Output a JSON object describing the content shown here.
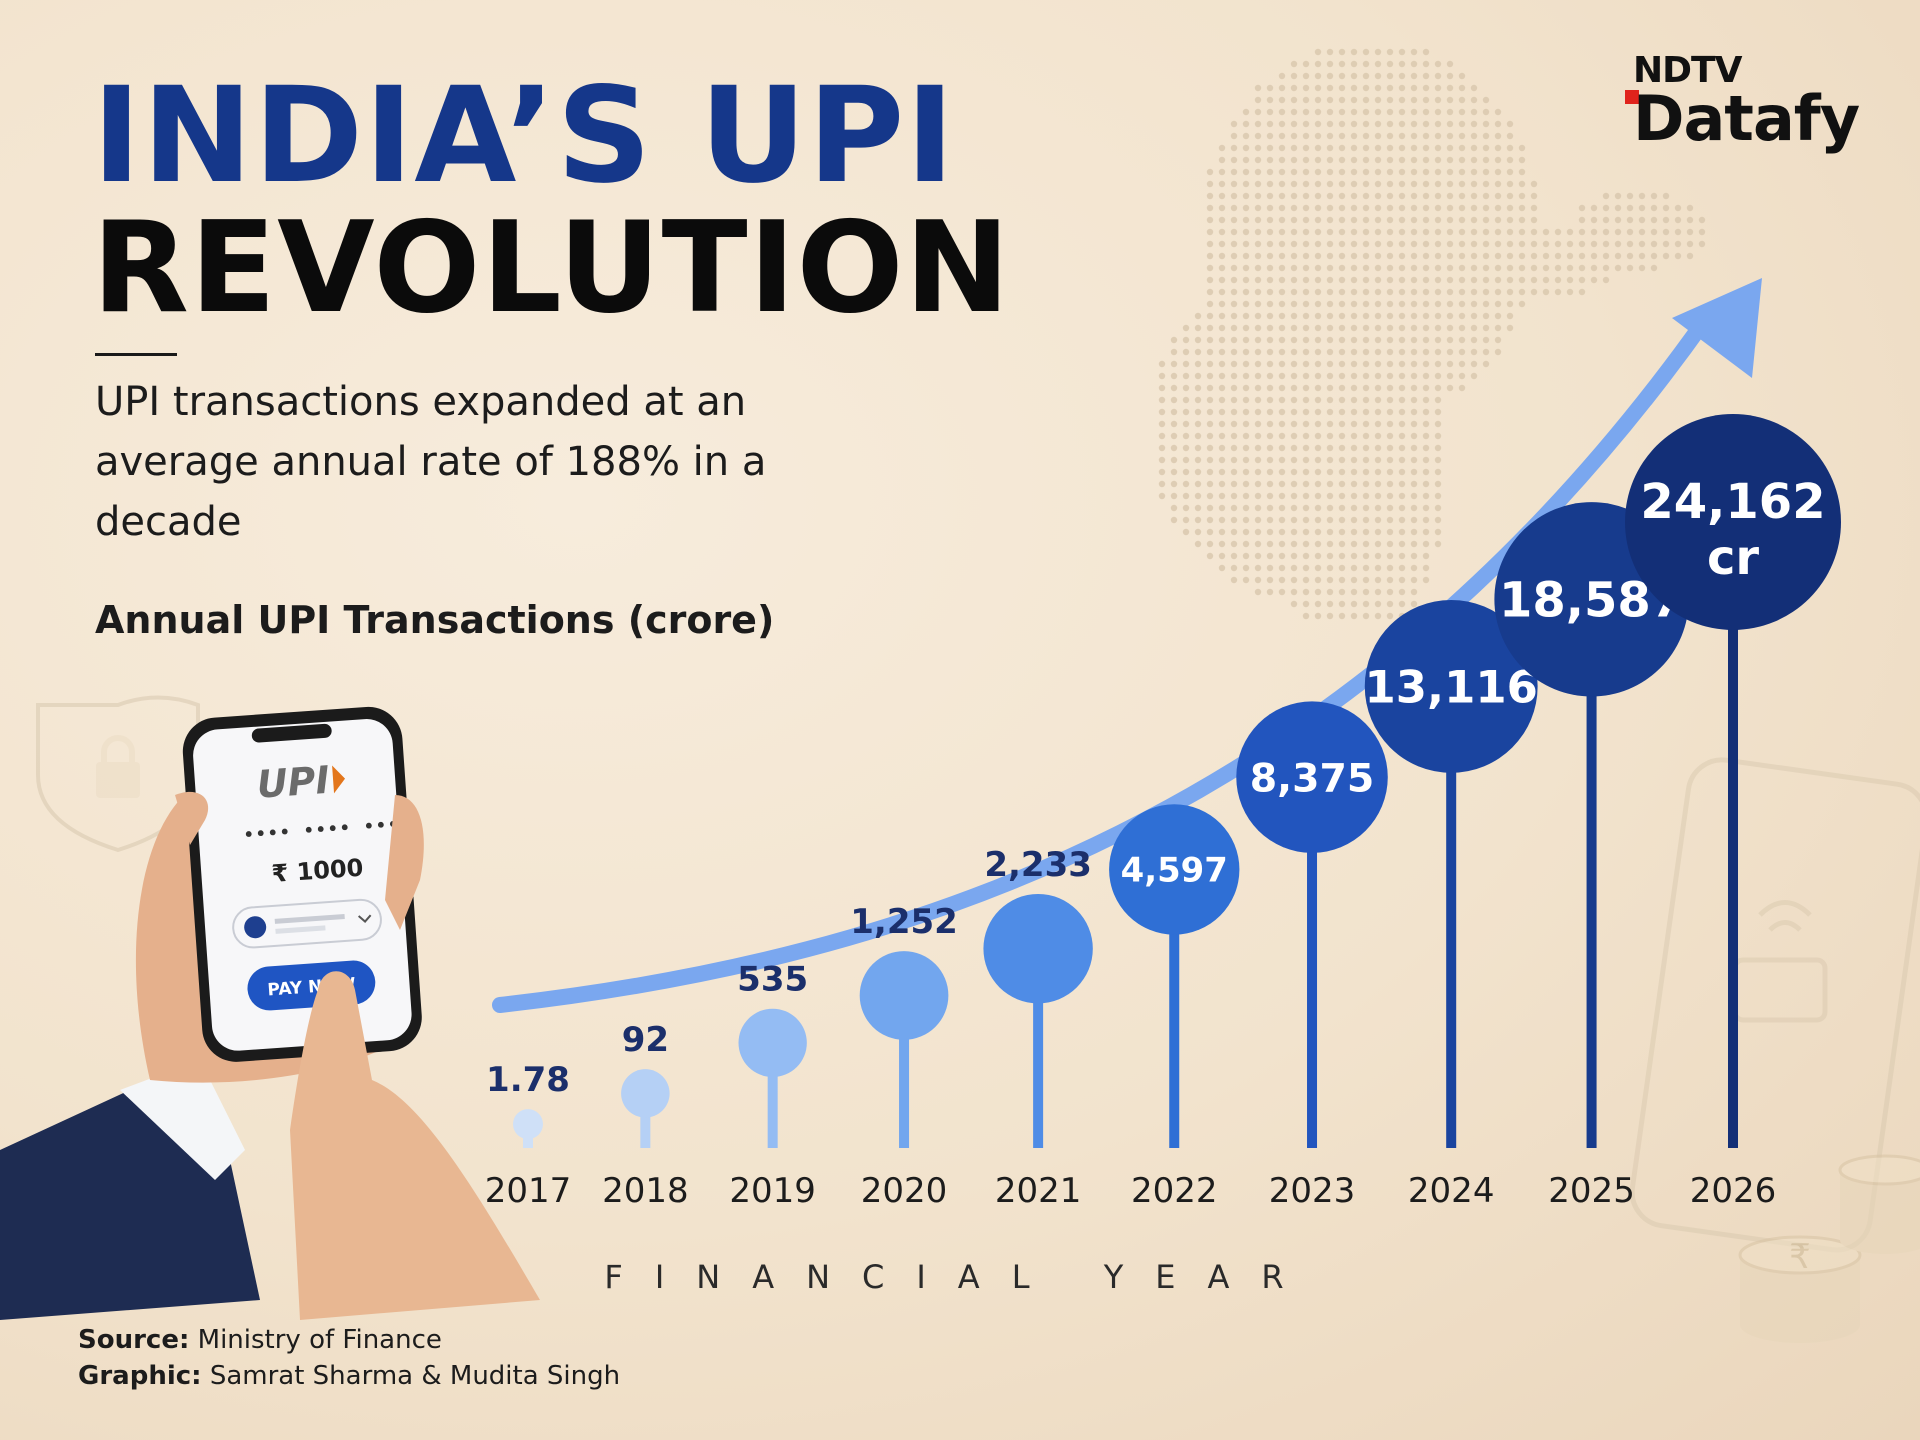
{
  "header": {
    "title_line1": "INDIA’S UPI",
    "title_line2": "REVOLUTION",
    "subtitle": "UPI transactions expanded at an average annual rate of 188% in a decade"
  },
  "brand": {
    "line1": "NDTV",
    "line2": "Datafy"
  },
  "phone": {
    "logo": "UPI",
    "amount": "₹ 1000",
    "button": "PAY NOW"
  },
  "footer": {
    "source_label": "Source:",
    "source_value": "Ministry of Finance",
    "graphic_label": "Graphic:",
    "graphic_value": "Samrat Sharma & Mudita Singh"
  },
  "chart_data": {
    "type": "bar",
    "title": "Annual UPI Transactions (crore)",
    "xlabel": "FINANCIAL YEAR",
    "categories": [
      "2017",
      "2018",
      "2019",
      "2020",
      "2021",
      "2022",
      "2023",
      "2024",
      "2025",
      "2026"
    ],
    "values": [
      1.78,
      92,
      535,
      1252,
      2233,
      4597,
      8375,
      13116,
      18587,
      24162
    ],
    "value_labels": [
      "1.78",
      "92",
      "535",
      "1,252",
      "2,233",
      "4,597",
      "8,375",
      "13,116",
      "18,587",
      "24,162"
    ],
    "last_value_unit": "cr",
    "colors": [
      "#cfe0f7",
      "#b5d0f5",
      "#94bcf3",
      "#72a6ee",
      "#4f8ce6",
      "#2f6fd5",
      "#2255be",
      "#1a449f",
      "#173b8d",
      "#132f77"
    ],
    "trend_arrow_color": "#7aa7ef",
    "legend": "none",
    "grid": false
  }
}
